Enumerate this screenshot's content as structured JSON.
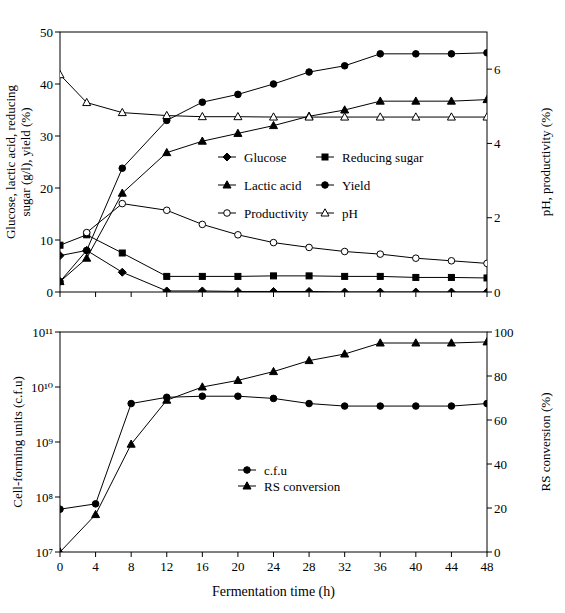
{
  "chart_data": [
    {
      "type": "line",
      "xlim": [
        0,
        48
      ],
      "xticks": [
        0,
        4,
        8,
        12,
        16,
        20,
        24,
        28,
        32,
        36,
        40,
        44,
        48
      ],
      "ylim": [
        0,
        50
      ],
      "yticks": [
        0,
        10,
        20,
        30,
        40,
        50
      ],
      "y2lim": [
        0,
        7
      ],
      "y2ticks": [
        0,
        2,
        4,
        6
      ],
      "ylabel": "Glucose, lactic acid, reducing sugar (g/l), yield (%)",
      "y2label": "pH, productivity (%)",
      "tick_labels": "y",
      "legend": "center",
      "x": [
        0,
        3,
        7,
        12,
        16,
        20,
        24,
        28,
        32,
        36,
        40,
        44,
        48
      ],
      "series": [
        {
          "name": "Glucose",
          "color": "#000000",
          "marker": "diamond",
          "values": [
            7,
            8,
            3.8,
            0.2,
            0.2,
            0.1,
            0.1,
            0.1,
            0,
            0,
            0,
            0,
            0
          ]
        },
        {
          "name": "Reducing sugar",
          "color": "#000000",
          "marker": "square",
          "values": [
            9,
            11,
            7.5,
            3,
            3,
            3,
            3.1,
            3.1,
            3,
            3,
            2.8,
            2.8,
            2.7
          ]
        },
        {
          "name": "Lactic acid",
          "color": "#000000",
          "marker": "triangle",
          "values": [
            2,
            6.5,
            19,
            26.8,
            29,
            30.5,
            32,
            33.8,
            35,
            36.7,
            36.7,
            36.7,
            37
          ]
        },
        {
          "name": "Yield",
          "color": "#000000",
          "marker": "circle",
          "values": [
            2,
            8,
            23.8,
            33,
            36.5,
            38,
            40,
            42.3,
            43.5,
            45.8,
            45.8,
            45.8,
            46
          ]
        },
        {
          "name": "Productivity",
          "color": "#000000",
          "marker": "open-circle",
          "axis": "y2",
          "values": [
            null,
            1.6,
            2.38,
            2.2,
            1.82,
            1.54,
            1.33,
            1.2,
            1.09,
            1.02,
            0.91,
            0.84,
            0.77
          ]
        },
        {
          "name": "pH",
          "color": "#000000",
          "marker": "open-triangle",
          "axis": "y2",
          "values": [
            5.85,
            5.1,
            4.83,
            4.75,
            4.72,
            4.72,
            4.71,
            4.71,
            4.71,
            4.71,
            4.71,
            4.71,
            4.71
          ]
        }
      ]
    },
    {
      "type": "line",
      "xlabel": "Fermentation time (h)",
      "xlim": [
        0,
        48
      ],
      "xticks": [
        0,
        4,
        8,
        12,
        16,
        20,
        24,
        28,
        32,
        36,
        40,
        44,
        48
      ],
      "log": "y",
      "ylim": [
        10000000,
        100000000000
      ],
      "yticks": [
        {
          "value": 10000000,
          "label": "10⁷"
        },
        {
          "value": 100000000,
          "label": "10⁸"
        },
        {
          "value": 1000000000,
          "label": "10⁹"
        },
        {
          "value": 10000000000,
          "label": "10¹⁰"
        },
        {
          "value": 100000000000,
          "label": "10¹¹"
        }
      ],
      "y2lim": [
        0,
        100
      ],
      "y2ticks": [
        0,
        20,
        40,
        60,
        80,
        100
      ],
      "ylabel": "Cell-forming units (c.f.u)",
      "y2label": "RS conversion (%)",
      "legend": "center",
      "x": [
        0,
        4,
        8,
        12,
        16,
        20,
        24,
        28,
        32,
        36,
        40,
        44,
        48
      ],
      "series": [
        {
          "name": "c.f.u",
          "color": "#000000",
          "marker": "circle",
          "values": [
            60000000,
            75000000,
            5000000000,
            6500000000,
            6800000000,
            6800000000,
            6200000000,
            5000000000,
            4500000000,
            4500000000,
            4500000000,
            4500000000,
            5000000000
          ]
        },
        {
          "name": "RS conversion",
          "color": "#000000",
          "marker": "triangle",
          "axis": "y2",
          "values": [
            0,
            17,
            49,
            69,
            75,
            78,
            82,
            87,
            90,
            95,
            95,
            95,
            95.5
          ]
        }
      ]
    }
  ]
}
